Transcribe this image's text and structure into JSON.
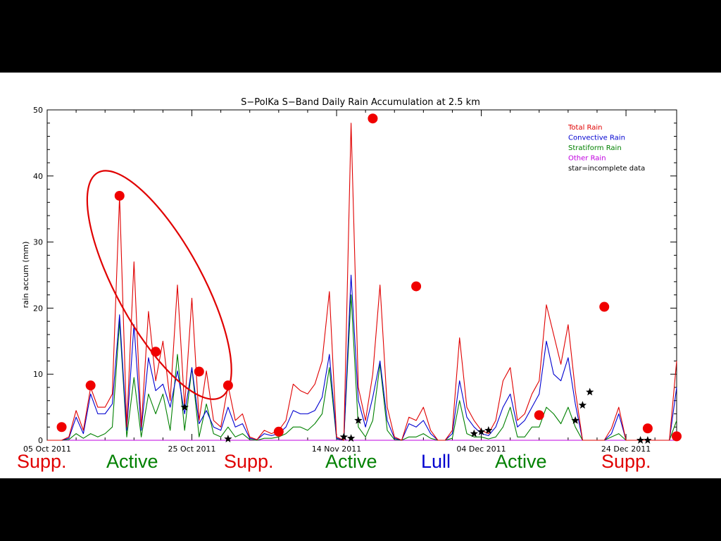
{
  "chart_data": {
    "type": "line",
    "title": "S−PolKa S−Band Daily Rain Accumulation at 2.5 km",
    "xlabel": "",
    "ylabel": "rain accum (mm)",
    "xlim": [
      "2011-10-05",
      "2011-12-31"
    ],
    "ylim": [
      0,
      50
    ],
    "yticks": [
      0,
      10,
      20,
      30,
      40,
      50
    ],
    "xticks": [
      {
        "date": "2011-10-05",
        "label": "05 Oct 2011"
      },
      {
        "date": "2011-10-25",
        "label": "25 Oct 2011"
      },
      {
        "date": "2011-11-14",
        "label": "14 Nov 2011"
      },
      {
        "date": "2011-12-04",
        "label": "04 Dec 2011"
      },
      {
        "date": "2011-12-24",
        "label": "24 Dec 2011"
      }
    ],
    "legend_position": "top-right",
    "legend": [
      {
        "label": "Total Rain",
        "color": "#e00000"
      },
      {
        "label": "Convective Rain",
        "color": "#0000d0"
      },
      {
        "label": "Stratiform Rain",
        "color": "#008000"
      },
      {
        "label": "Other Rain",
        "color": "#c000e0"
      },
      {
        "label": "star=incomplete data",
        "color": "#000000"
      }
    ],
    "dates": [
      "2011-10-05",
      "2011-10-06",
      "2011-10-07",
      "2011-10-08",
      "2011-10-09",
      "2011-10-10",
      "2011-10-11",
      "2011-10-12",
      "2011-10-13",
      "2011-10-14",
      "2011-10-15",
      "2011-10-16",
      "2011-10-17",
      "2011-10-18",
      "2011-10-19",
      "2011-10-20",
      "2011-10-21",
      "2011-10-22",
      "2011-10-23",
      "2011-10-24",
      "2011-10-25",
      "2011-10-26",
      "2011-10-27",
      "2011-10-28",
      "2011-10-29",
      "2011-10-30",
      "2011-10-31",
      "2011-11-01",
      "2011-11-02",
      "2011-11-03",
      "2011-11-04",
      "2011-11-05",
      "2011-11-06",
      "2011-11-07",
      "2011-11-08",
      "2011-11-09",
      "2011-11-10",
      "2011-11-11",
      "2011-11-12",
      "2011-11-13",
      "2011-11-14",
      "2011-11-15",
      "2011-11-16",
      "2011-11-17",
      "2011-11-18",
      "2011-11-19",
      "2011-11-20",
      "2011-11-21",
      "2011-11-22",
      "2011-11-23",
      "2011-11-24",
      "2011-11-25",
      "2011-11-26",
      "2011-11-27",
      "2011-11-28",
      "2011-11-29",
      "2011-11-30",
      "2011-12-01",
      "2011-12-02",
      "2011-12-03",
      "2011-12-04",
      "2011-12-05",
      "2011-12-06",
      "2011-12-07",
      "2011-12-08",
      "2011-12-09",
      "2011-12-10",
      "2011-12-11",
      "2011-12-12",
      "2011-12-13",
      "2011-12-14",
      "2011-12-15",
      "2011-12-16",
      "2011-12-17",
      "2011-12-18",
      "2011-12-19",
      "2011-12-20",
      "2011-12-21",
      "2011-12-22",
      "2011-12-23",
      "2011-12-24",
      "2011-12-25",
      "2011-12-26",
      "2011-12-27",
      "2011-12-28",
      "2011-12-29",
      "2011-12-30",
      "2011-12-31"
    ],
    "series": [
      {
        "name": "Total Rain",
        "color": "#e00000",
        "values": [
          0,
          0,
          0,
          0.5,
          4.5,
          1.5,
          8,
          5,
          5,
          7,
          37,
          2,
          27,
          2,
          19.5,
          9,
          15,
          6,
          23.5,
          5,
          21.5,
          3,
          10.5,
          3,
          2,
          8.3,
          3,
          4,
          0.5,
          0.1,
          1.5,
          1,
          1.5,
          3,
          8.5,
          7.5,
          7,
          8.5,
          12,
          22.5,
          0.5,
          0,
          48,
          8,
          3,
          10,
          23.5,
          5,
          0.5,
          0,
          3.5,
          3,
          5,
          1.5,
          0,
          0,
          1.5,
          15.5,
          5,
          3,
          1.5,
          1,
          3,
          9,
          11,
          3,
          4,
          7,
          9,
          20.5,
          16,
          11.5,
          17.5,
          7.5,
          0,
          0,
          0,
          0,
          1.8,
          5,
          0,
          0,
          0,
          0,
          0,
          0,
          0,
          12
        ]
      },
      {
        "name": "Convective Rain",
        "color": "#0000d0",
        "values": [
          0,
          0,
          0,
          0.3,
          3.5,
          1,
          7,
          4,
          4,
          5.5,
          19,
          1.5,
          17.5,
          1.5,
          12.5,
          7.5,
          8.5,
          5,
          10.5,
          4,
          11,
          2.5,
          4.5,
          2,
          1.5,
          5,
          2,
          2.5,
          0.3,
          0.1,
          1,
          0.7,
          1,
          2,
          4.5,
          4,
          4,
          4.5,
          6.5,
          13,
          0.3,
          0,
          25,
          6,
          2,
          6.5,
          12,
          3,
          0.3,
          0,
          2.5,
          2,
          3,
          1,
          0,
          0,
          1,
          9,
          3.5,
          2,
          1,
          0.7,
          2,
          5,
          7,
          2,
          3,
          5,
          7,
          15,
          10,
          9,
          12.5,
          5.5,
          0,
          0,
          0,
          0,
          1,
          4,
          0,
          0,
          0,
          0,
          0,
          0,
          0,
          8
        ]
      },
      {
        "name": "Stratiform Rain",
        "color": "#008000",
        "values": [
          0,
          0,
          0,
          0.1,
          1,
          0.3,
          1,
          0.5,
          1,
          2,
          18,
          0.5,
          9.5,
          0.5,
          7,
          4,
          7,
          1.5,
          13,
          1.5,
          11,
          0.5,
          5.5,
          1,
          0.5,
          2,
          0.5,
          1,
          0.1,
          0,
          0.3,
          0.3,
          0.5,
          1,
          2,
          2,
          1.5,
          2.5,
          4,
          11,
          0.2,
          0,
          22,
          2,
          0.5,
          3,
          11.5,
          1.5,
          0.1,
          0,
          0.5,
          0.5,
          1,
          0.3,
          0,
          0,
          0.3,
          6,
          1,
          0.5,
          0.5,
          0.2,
          0.5,
          2,
          5,
          0.5,
          0.5,
          2,
          2,
          5,
          4,
          2.5,
          5,
          2,
          0,
          0,
          0,
          0,
          0.5,
          1,
          0,
          0,
          0,
          0,
          0,
          0,
          0,
          3
        ]
      },
      {
        "name": "Other Rain",
        "color": "#c000e0",
        "values": [
          0,
          0,
          0,
          0,
          0,
          0,
          0,
          0,
          0,
          0,
          0,
          0,
          0,
          0,
          0,
          0,
          0,
          0,
          0,
          0,
          0,
          0,
          0,
          0,
          0,
          0,
          0,
          0,
          0,
          0,
          0,
          0,
          0,
          0,
          0,
          0,
          0,
          0,
          0,
          0,
          0,
          0,
          0,
          0,
          0,
          0,
          0,
          0,
          0,
          0,
          0,
          0,
          0,
          0,
          0,
          0,
          0,
          0,
          0,
          0,
          0,
          0,
          0,
          0,
          0,
          0,
          0,
          0,
          0,
          0,
          0,
          0,
          0,
          0,
          0,
          0,
          0,
          0,
          0,
          0,
          0,
          0,
          0,
          0,
          0,
          0,
          0,
          0
        ]
      }
    ],
    "stars": [
      {
        "date": "2011-10-24",
        "value": 5
      },
      {
        "date": "2011-10-30",
        "value": 0.2
      },
      {
        "date": "2011-11-15",
        "value": 0.5
      },
      {
        "date": "2011-11-16",
        "value": 0.3
      },
      {
        "date": "2011-11-17",
        "value": 3
      },
      {
        "date": "2011-12-03",
        "value": 1
      },
      {
        "date": "2011-12-04",
        "value": 1.3
      },
      {
        "date": "2011-12-05",
        "value": 1.5
      },
      {
        "date": "2011-12-17",
        "value": 3
      },
      {
        "date": "2011-12-18",
        "value": 5.3
      },
      {
        "date": "2011-12-19",
        "value": 7.3
      },
      {
        "date": "2011-12-26",
        "value": 0
      },
      {
        "date": "2011-12-27",
        "value": 0
      }
    ],
    "highlight_points": [
      {
        "date": "2011-10-07",
        "value": 2
      },
      {
        "date": "2011-10-11",
        "value": 8.3
      },
      {
        "date": "2011-10-15",
        "value": 37
      },
      {
        "date": "2011-10-20",
        "value": 13.4
      },
      {
        "date": "2011-10-26",
        "value": 10.4
      },
      {
        "date": "2011-10-30",
        "value": 8.3
      },
      {
        "date": "2011-11-06",
        "value": 1.3
      },
      {
        "date": "2011-11-19",
        "value": 48.7
      },
      {
        "date": "2011-11-25",
        "value": 23.3
      },
      {
        "date": "2011-12-12",
        "value": 3.8
      },
      {
        "date": "2011-12-21",
        "value": 20.2
      },
      {
        "date": "2011-12-27",
        "value": 1.8
      },
      {
        "date": "2011-12-31",
        "value": 0.6
      }
    ],
    "highlight_ellipse": {
      "from": "2011-10-12",
      "to": "2011-10-29",
      "ymin": 6.5,
      "ymax": 40.5
    },
    "phase_labels": [
      {
        "label": "Supp.",
        "color": "#e00000"
      },
      {
        "label": "Active",
        "color": "#008000"
      },
      {
        "label": "Supp.",
        "color": "#e00000"
      },
      {
        "label": "Active",
        "color": "#008000"
      },
      {
        "label": "Lull",
        "color": "#0000d0"
      },
      {
        "label": "Active",
        "color": "#008000"
      },
      {
        "label": "Supp.",
        "color": "#e00000"
      }
    ]
  }
}
